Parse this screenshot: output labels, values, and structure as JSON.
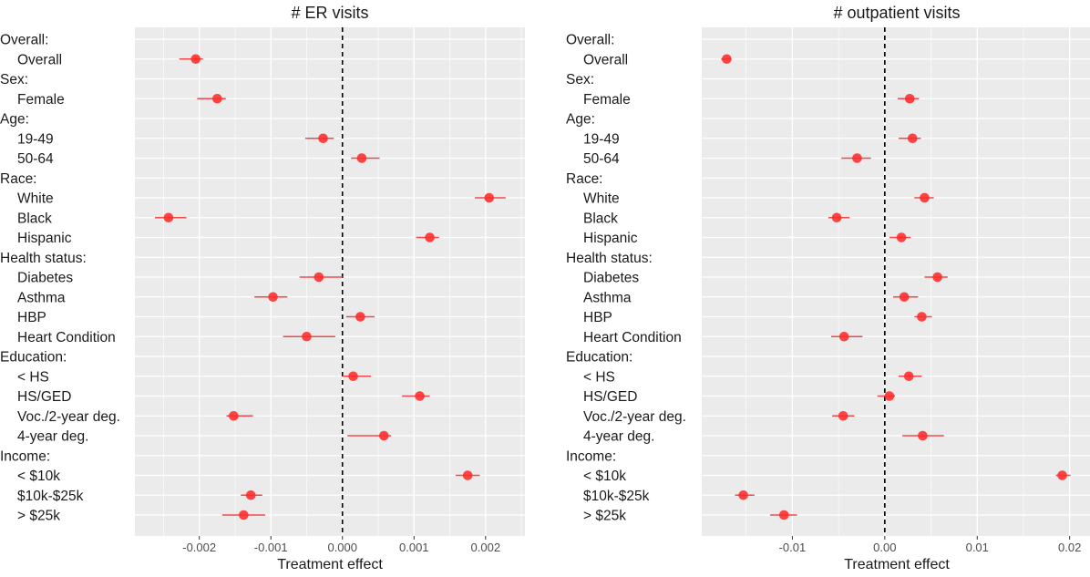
{
  "colors": {
    "panel_bg": "#ebebeb",
    "grid": "#ffffff",
    "point": "#ff2a2a",
    "ci": "#f04a4a",
    "zero_line": "#000000"
  },
  "rows": [
    {
      "label": "Overall:",
      "header": true
    },
    {
      "label": "Overall",
      "header": false
    },
    {
      "label": "Sex:",
      "header": true
    },
    {
      "label": "Female",
      "header": false
    },
    {
      "label": "Age:",
      "header": true
    },
    {
      "label": "19-49",
      "header": false
    },
    {
      "label": "50-64",
      "header": false
    },
    {
      "label": "Race:",
      "header": true
    },
    {
      "label": "White",
      "header": false
    },
    {
      "label": "Black",
      "header": false
    },
    {
      "label": "Hispanic",
      "header": false
    },
    {
      "label": "Health status:",
      "header": true
    },
    {
      "label": "Diabetes",
      "header": false
    },
    {
      "label": "Asthma",
      "header": false
    },
    {
      "label": "HBP",
      "header": false
    },
    {
      "label": "Heart Condition",
      "header": false
    },
    {
      "label": "Education:",
      "header": true
    },
    {
      "label": "< HS",
      "header": false
    },
    {
      "label": "HS/GED",
      "header": false
    },
    {
      "label": "Voc./2-year deg.",
      "header": false
    },
    {
      "label": "4-year deg.",
      "header": false
    },
    {
      "label": "Income:",
      "header": true
    },
    {
      "label": "< $10k",
      "header": false
    },
    {
      "label": "$10k-$25k",
      "header": false
    },
    {
      "label": "> $25k",
      "header": false
    }
  ],
  "chart_data": [
    {
      "type": "scatter",
      "title": "# ER visits",
      "xlabel": "Treatment effect",
      "xlim": [
        -0.0029,
        0.00255
      ],
      "ticks": [
        -0.002,
        -0.001,
        0.0,
        0.001,
        0.002
      ],
      "tick_labels": [
        "-0.002",
        "-0.001",
        "0.000",
        "0.001",
        "0.002"
      ],
      "reference_line": 0,
      "grid": true,
      "points": [
        {
          "row": "Overall",
          "estimate": -0.00205,
          "low": -0.00228,
          "high": -0.00195
        },
        {
          "row": "Female",
          "estimate": -0.00175,
          "low": -0.00203,
          "high": -0.00163
        },
        {
          "row": "19-49",
          "estimate": -0.00027,
          "low": -0.00052,
          "high": -0.00012
        },
        {
          "row": "50-64",
          "estimate": 0.00027,
          "low": 0.00012,
          "high": 0.00052
        },
        {
          "row": "White",
          "estimate": 0.00205,
          "low": 0.00185,
          "high": 0.00228
        },
        {
          "row": "Black",
          "estimate": -0.00243,
          "low": -0.00262,
          "high": -0.00218
        },
        {
          "row": "Hispanic",
          "estimate": 0.00122,
          "low": 0.00103,
          "high": 0.00135
        },
        {
          "row": "Diabetes",
          "estimate": -0.00033,
          "low": -0.0006,
          "high": 0.0
        },
        {
          "row": "Asthma",
          "estimate": -0.00097,
          "low": -0.00123,
          "high": -0.00077
        },
        {
          "row": "HBP",
          "estimate": 0.00025,
          "low": 5e-05,
          "high": 0.00045
        },
        {
          "row": "Heart Condition",
          "estimate": -0.0005,
          "low": -0.00083,
          "high": -0.0001
        },
        {
          "row": "< HS",
          "estimate": 0.00015,
          "low": 0.0,
          "high": 0.0004
        },
        {
          "row": "HS/GED",
          "estimate": 0.00108,
          "low": 0.00083,
          "high": 0.00122
        },
        {
          "row": "Voc./2-year deg.",
          "estimate": -0.00152,
          "low": -0.00162,
          "high": -0.00125
        },
        {
          "row": "4-year deg.",
          "estimate": 0.00058,
          "low": 7e-05,
          "high": 0.00068
        },
        {
          "row": "< $10k",
          "estimate": 0.00175,
          "low": 0.00158,
          "high": 0.00192
        },
        {
          "row": "$10k-$25k",
          "estimate": -0.00128,
          "low": -0.00142,
          "high": -0.00112
        },
        {
          "row": "> $25k",
          "estimate": -0.00138,
          "low": -0.00168,
          "high": -0.00108
        }
      ]
    },
    {
      "type": "scatter",
      "title": "# outpatient visits",
      "xlabel": "Treatment effect",
      "xlim": [
        -0.0198,
        0.0222
      ],
      "ticks": [
        -0.01,
        0.0,
        0.01,
        0.02
      ],
      "tick_labels": [
        "-0.01",
        "0.00",
        "0.01",
        "0.02"
      ],
      "reference_line": 0,
      "grid": true,
      "points": [
        {
          "row": "Overall",
          "estimate": -0.0171,
          "low": -0.0177,
          "high": -0.0166
        },
        {
          "row": "Female",
          "estimate": 0.0027,
          "low": 0.0014,
          "high": 0.0037
        },
        {
          "row": "19-49",
          "estimate": 0.003,
          "low": 0.0015,
          "high": 0.0039
        },
        {
          "row": "50-64",
          "estimate": -0.003,
          "low": -0.0047,
          "high": -0.0015
        },
        {
          "row": "White",
          "estimate": 0.0043,
          "low": 0.0032,
          "high": 0.0053
        },
        {
          "row": "Black",
          "estimate": -0.0052,
          "low": -0.0061,
          "high": -0.0038
        },
        {
          "row": "Hispanic",
          "estimate": 0.0018,
          "low": 0.0005,
          "high": 0.0028
        },
        {
          "row": "Diabetes",
          "estimate": 0.0057,
          "low": 0.0043,
          "high": 0.0068
        },
        {
          "row": "Asthma",
          "estimate": 0.0021,
          "low": 0.0009,
          "high": 0.0036
        },
        {
          "row": "HBP",
          "estimate": 0.004,
          "low": 0.0032,
          "high": 0.0051
        },
        {
          "row": "Heart Condition",
          "estimate": -0.0044,
          "low": -0.0058,
          "high": -0.0024
        },
        {
          "row": "< HS",
          "estimate": 0.0026,
          "low": 0.0015,
          "high": 0.004
        },
        {
          "row": "HS/GED",
          "estimate": 0.0005,
          "low": -0.0008,
          "high": 0.0011
        },
        {
          "row": "Voc./2-year deg.",
          "estimate": -0.0045,
          "low": -0.0057,
          "high": -0.0033
        },
        {
          "row": "4-year deg.",
          "estimate": 0.0041,
          "low": 0.0019,
          "high": 0.0064
        },
        {
          "row": "< $10k",
          "estimate": 0.0192,
          "low": 0.0185,
          "high": 0.0201
        },
        {
          "row": "$10k-$25k",
          "estimate": -0.0153,
          "low": -0.0162,
          "high": -0.0141
        },
        {
          "row": "> $25k",
          "estimate": -0.0109,
          "low": -0.0124,
          "high": -0.0095
        }
      ]
    }
  ]
}
